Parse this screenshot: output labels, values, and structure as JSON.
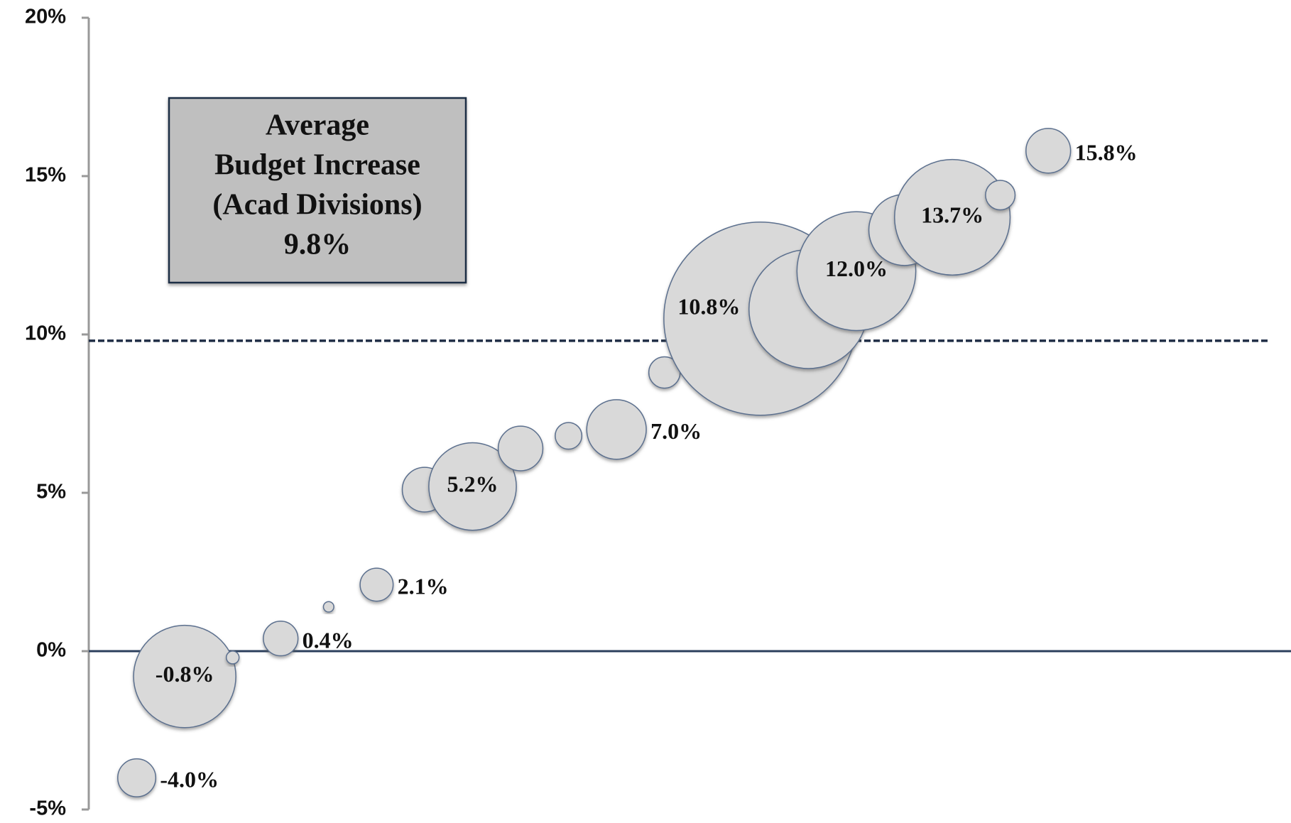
{
  "chart_data": {
    "type": "bubble",
    "x": [
      1,
      2,
      3,
      4,
      5,
      6,
      7,
      8,
      9,
      10,
      11,
      12,
      14,
      15,
      16,
      17,
      18,
      19,
      20
    ],
    "values": [
      -4.0,
      -0.8,
      -0.2,
      0.4,
      1.4,
      2.1,
      5.1,
      5.2,
      6.4,
      6.8,
      7.0,
      8.8,
      10.5,
      10.8,
      12.0,
      13.3,
      13.7,
      14.4,
      15.8
    ],
    "value_labels": [
      "-4.0%",
      "-0.8%",
      null,
      "0.4%",
      null,
      "2.1%",
      null,
      "5.2%",
      null,
      null,
      "7.0%",
      null,
      null,
      "10.8%",
      "12.0%",
      null,
      "13.7%",
      null,
      "15.8%"
    ],
    "sizes": [
      53,
      384,
      6,
      44,
      4,
      40,
      73,
      281,
      73,
      26,
      130,
      36,
      1369,
      518,
      518,
      185,
      490,
      32,
      73
    ],
    "color": "#d9d9d9",
    "xlim": [
      0,
      25
    ],
    "ylim": [
      -5,
      20
    ],
    "yticks": [
      {
        "value": -5,
        "label": "-5%"
      },
      {
        "value": 0,
        "label": "0%"
      },
      {
        "value": 5,
        "label": "5%"
      },
      {
        "value": 10,
        "label": "10%"
      },
      {
        "value": 15,
        "label": "15%"
      },
      {
        "value": 20,
        "label": "20%"
      }
    ],
    "annotation": {
      "lines": [
        "Average",
        "Budget Increase",
        "(Acad Divisions)"
      ],
      "value": 9.8,
      "value_label": "9.8%"
    }
  }
}
